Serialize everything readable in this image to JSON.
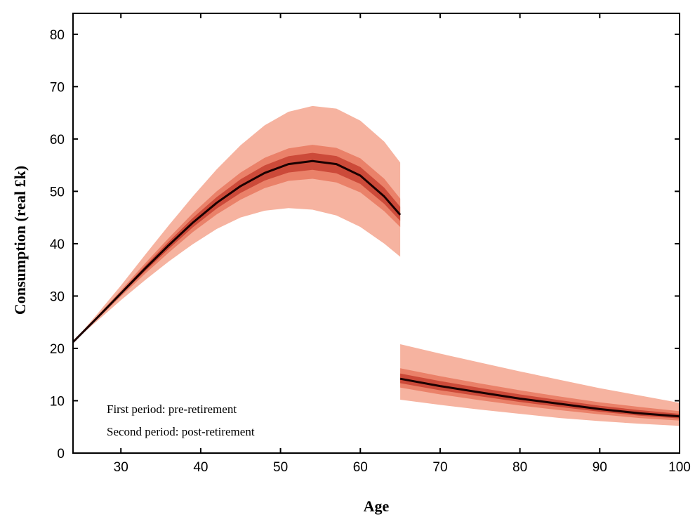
{
  "chart_data": {
    "type": "line",
    "title": "",
    "xlabel": "Age",
    "ylabel": "Consumption (real £k)",
    "xlim": [
      24,
      100
    ],
    "ylim": [
      0,
      84
    ],
    "x_ticks": [
      30,
      40,
      50,
      60,
      70,
      80,
      90,
      100
    ],
    "y_ticks": [
      0,
      10,
      20,
      30,
      40,
      50,
      60,
      70,
      80
    ],
    "grid": false,
    "legend": "none",
    "annotations": [
      "First period: pre-retirement",
      "Second period: post-retirement"
    ],
    "colors": {
      "median": "#1a0000",
      "band_outer": "#f6b3a0",
      "band_mid": "#ea8169",
      "band_inner": "#cc4a39"
    },
    "series": [
      {
        "segment": "pre-retirement",
        "x": [
          24,
          27,
          30,
          33,
          36,
          39,
          42,
          45,
          48,
          51,
          54,
          57,
          60,
          63,
          65
        ],
        "median": [
          21.2,
          25.8,
          30.5,
          35.2,
          39.7,
          44,
          47.8,
          51,
          53.5,
          55.2,
          55.8,
          55.2,
          53,
          49,
          45.5
        ],
        "p5": [
          21.2,
          25.2,
          29.2,
          33,
          36.6,
          39.9,
          42.8,
          45,
          46.3,
          46.8,
          46.5,
          45.4,
          43.2,
          40,
          37.5
        ],
        "p25": [
          21.2,
          25.5,
          29.9,
          34.2,
          38.3,
          42.2,
          45.6,
          48.4,
          50.6,
          52,
          52.4,
          51.7,
          49.8,
          46.2,
          43.2
        ],
        "p75": [
          21.2,
          26.1,
          31.1,
          36.2,
          41.1,
          45.8,
          50,
          53.6,
          56.4,
          58.2,
          58.9,
          58.3,
          56.3,
          52.4,
          48.6
        ],
        "p95": [
          21.2,
          26.5,
          32,
          37.8,
          43.5,
          49,
          54.2,
          58.8,
          62.6,
          65.2,
          66.3,
          65.8,
          63.5,
          59.5,
          55.5
        ]
      },
      {
        "segment": "post-retirement",
        "x": [
          65,
          70,
          75,
          80,
          85,
          90,
          95,
          100
        ],
        "median": [
          14.2,
          12.8,
          11.6,
          10.4,
          9.4,
          8.4,
          7.6,
          7
        ],
        "p5": [
          10.2,
          9.2,
          8.3,
          7.5,
          6.7,
          6.1,
          5.6,
          5.2
        ],
        "p25": [
          12.5,
          11.2,
          10.1,
          9.1,
          8.2,
          7.4,
          6.7,
          6.2
        ],
        "p75": [
          16.2,
          14.7,
          13.3,
          12,
          10.8,
          9.7,
          8.8,
          8
        ],
        "p95": [
          20.8,
          19,
          17.3,
          15.6,
          14,
          12.4,
          11,
          9.6
        ]
      }
    ]
  }
}
